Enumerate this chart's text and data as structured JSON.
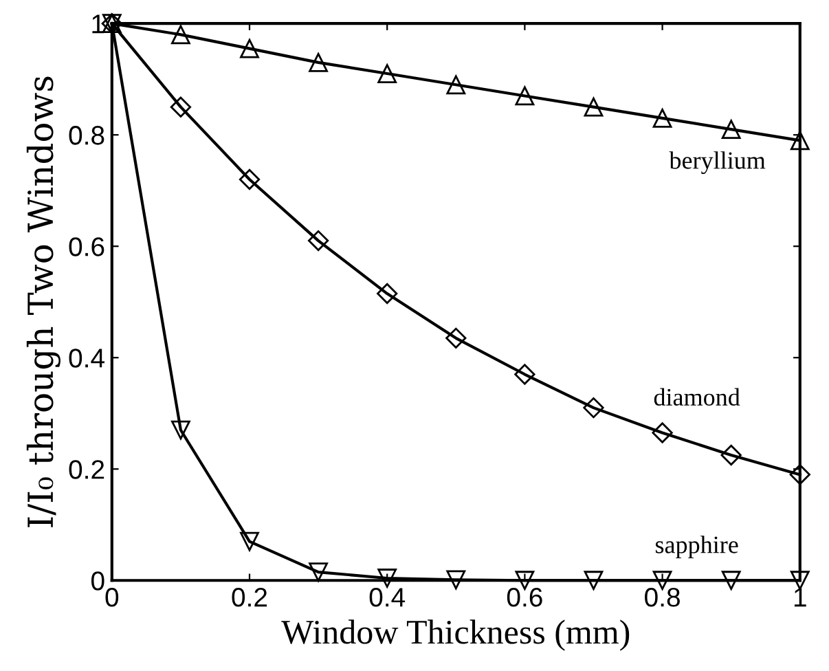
{
  "chart_data": {
    "type": "line",
    "xlabel": "Window Thickness (mm)",
    "ylabel": "I/I₀ through Two Windows",
    "x": [
      0,
      0.1,
      0.2,
      0.3,
      0.4,
      0.5,
      0.6,
      0.7,
      0.8,
      0.9,
      1
    ],
    "series": [
      {
        "name": "beryllium",
        "color": "#000000",
        "marker": "triangle",
        "values": [
          1,
          0.98,
          0.955,
          0.93,
          0.91,
          0.89,
          0.87,
          0.85,
          0.83,
          0.81,
          0.79
        ]
      },
      {
        "name": "diamond",
        "color": "#000000",
        "marker": "diamond",
        "values": [
          1,
          0.85,
          0.72,
          0.61,
          0.515,
          0.435,
          0.37,
          0.31,
          0.265,
          0.225,
          0.19
        ]
      },
      {
        "name": "sapphire",
        "color": "#000000",
        "marker": "triangle_down",
        "values": [
          1,
          0.27,
          0.07,
          0.015,
          0.004,
          0.001,
          0,
          0,
          0,
          0,
          0
        ]
      }
    ],
    "xlim": [
      0,
      1
    ],
    "ylim": [
      0,
      1
    ],
    "xticks": [
      0,
      0.2,
      0.4,
      0.6,
      0.8,
      1
    ],
    "yticks": [
      0,
      0.2,
      0.4,
      0.6,
      0.8,
      1
    ],
    "grid": false,
    "legend": false,
    "line_style": "solid"
  }
}
